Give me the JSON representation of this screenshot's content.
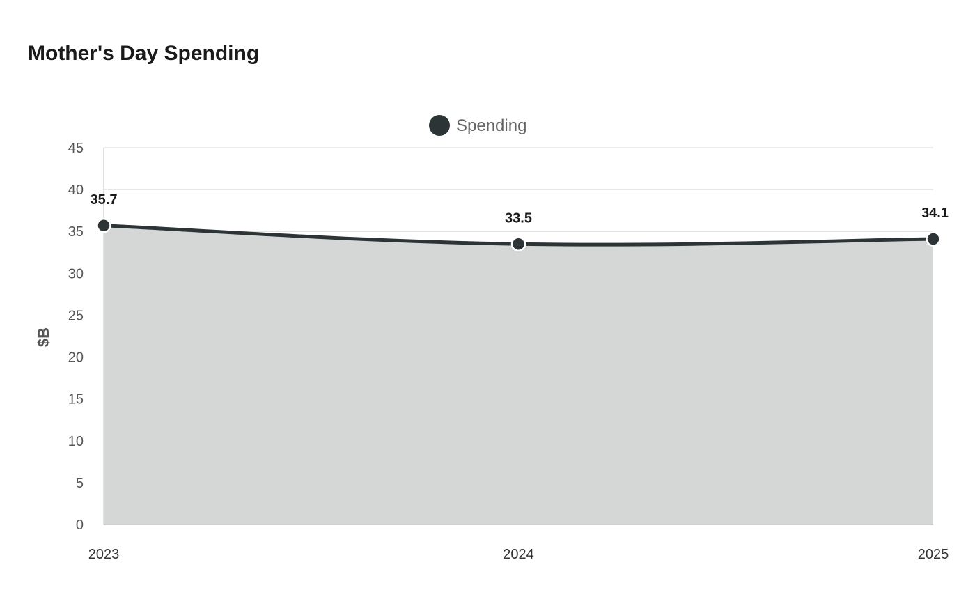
{
  "chart_data": {
    "type": "area",
    "title": "Mother's Day Spending",
    "xlabel": "",
    "ylabel": "$B",
    "categories": [
      "2023",
      "2024",
      "2025"
    ],
    "series": [
      {
        "name": "Spending",
        "values": [
          35.7,
          33.5,
          34.1
        ]
      }
    ],
    "ylim": [
      0,
      45
    ],
    "yticks": [
      0,
      5,
      10,
      15,
      20,
      25,
      30,
      35,
      40,
      45
    ],
    "grid": true,
    "legend": "top-center",
    "colors": {
      "line": "#2d3436",
      "area": "#d5d7d6",
      "grid": "#e0e0e0",
      "axis": "#cccccc"
    }
  }
}
